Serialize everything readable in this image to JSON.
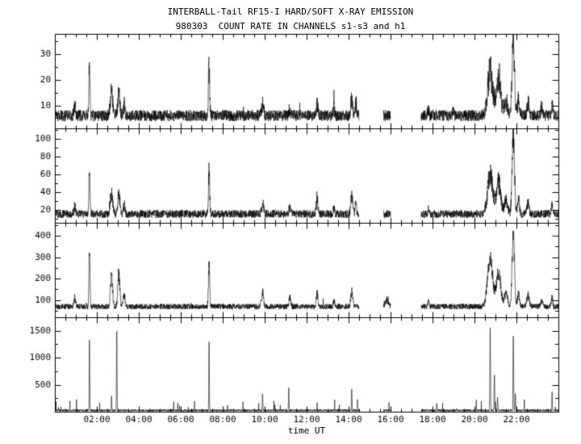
{
  "title_line1": "INTERBALL-Tail RF15-I HARD/SOFT X-RAY EMISSION",
  "title_line2": "980303  COUNT RATE IN CHANNELS s1-s3 and h1",
  "xlabel": "time UT",
  "chart_data": {
    "type": "line",
    "title": "INTERBALL-Tail RF15-I HARD/SOFT X-RAY EMISSION",
    "subtitle": "980303  COUNT RATE IN CHANNELS s1-s3 and h1",
    "xlabel": "time UT",
    "x_range_hours": [
      0,
      24
    ],
    "x_tick_values": [
      2,
      4,
      6,
      8,
      10,
      12,
      14,
      16,
      18,
      20,
      22
    ],
    "x_tick_labels": [
      "02:00",
      "04:00",
      "06:00",
      "08:00",
      "10:00",
      "12:00",
      "14:00",
      "16:00",
      "18:00",
      "20:00",
      "22:00"
    ],
    "x_minor_step_hours": 0.5,
    "sample_step_hours": 0.008,
    "seed": 12345,
    "line_color": "#000000",
    "data_gaps_hours": [
      [
        14.5,
        15.66
      ],
      [
        16.0,
        17.45
      ]
    ],
    "panels": [
      {
        "name": "channel-s1",
        "ylim": [
          1,
          38
        ],
        "yticks": [
          10,
          20,
          30
        ],
        "yminor": 5,
        "baseline": 6,
        "noise": 2.2,
        "spike_prob": 0.003,
        "spike_amp": 5,
        "events": [
          [
            0.95,
            4,
            0.04
          ],
          [
            1.65,
            23,
            0.025
          ],
          [
            2.7,
            9,
            0.06
          ],
          [
            3.05,
            8,
            0.05
          ],
          [
            3.3,
            4,
            0.04
          ],
          [
            7.35,
            19,
            0.03
          ],
          [
            9.9,
            4,
            0.05
          ],
          [
            11.2,
            3,
            0.04
          ],
          [
            12.5,
            4,
            0.04
          ],
          [
            13.3,
            3,
            0.03
          ],
          [
            14.15,
            6,
            0.05
          ],
          [
            14.35,
            5,
            0.03
          ],
          [
            17.8,
            3,
            0.03
          ],
          [
            19.0,
            2.5,
            0.03
          ],
          [
            20.75,
            17,
            0.12
          ],
          [
            21.15,
            14,
            0.1
          ],
          [
            21.5,
            6,
            0.08
          ],
          [
            21.85,
            30,
            0.055
          ],
          [
            22.1,
            6,
            0.05
          ],
          [
            22.55,
            5,
            0.05
          ],
          [
            23.2,
            3,
            0.04
          ],
          [
            23.7,
            5,
            0.03
          ]
        ]
      },
      {
        "name": "channel-s2",
        "ylim": [
          5,
          112
        ],
        "yticks": [
          20,
          40,
          60,
          80,
          100
        ],
        "yminor": 10,
        "baseline": 15,
        "noise": 4.5,
        "spike_prob": 0.003,
        "spike_amp": 10,
        "events": [
          [
            0.95,
            8,
            0.04
          ],
          [
            1.65,
            58,
            0.025
          ],
          [
            2.7,
            25,
            0.06
          ],
          [
            3.05,
            22,
            0.05
          ],
          [
            3.3,
            10,
            0.04
          ],
          [
            7.35,
            48,
            0.03
          ],
          [
            9.9,
            12,
            0.05
          ],
          [
            11.2,
            8,
            0.04
          ],
          [
            12.5,
            18,
            0.04
          ],
          [
            13.3,
            8,
            0.03
          ],
          [
            14.15,
            20,
            0.05
          ],
          [
            14.35,
            15,
            0.03
          ],
          [
            17.8,
            6,
            0.03
          ],
          [
            20.75,
            45,
            0.12
          ],
          [
            21.15,
            35,
            0.1
          ],
          [
            21.5,
            15,
            0.08
          ],
          [
            21.85,
            88,
            0.055
          ],
          [
            22.1,
            15,
            0.05
          ],
          [
            22.55,
            12,
            0.05
          ],
          [
            23.7,
            12,
            0.03
          ]
        ]
      },
      {
        "name": "channel-s3",
        "ylim": [
          20,
          460
        ],
        "yticks": [
          100,
          200,
          300,
          400
        ],
        "yminor": 50,
        "baseline": 70,
        "noise": 13,
        "spike_prob": 0.003,
        "spike_amp": 35,
        "events": [
          [
            0.95,
            40,
            0.04
          ],
          [
            1.65,
            265,
            0.025
          ],
          [
            2.7,
            150,
            0.05
          ],
          [
            3.05,
            160,
            0.045
          ],
          [
            3.3,
            60,
            0.04
          ],
          [
            7.35,
            195,
            0.03
          ],
          [
            9.9,
            70,
            0.05
          ],
          [
            11.2,
            40,
            0.04
          ],
          [
            12.5,
            60,
            0.04
          ],
          [
            13.3,
            35,
            0.03
          ],
          [
            14.15,
            70,
            0.05
          ],
          [
            15.8,
            25,
            0.08
          ],
          [
            17.8,
            25,
            0.03
          ],
          [
            20.75,
            230,
            0.12
          ],
          [
            21.15,
            160,
            0.1
          ],
          [
            21.5,
            60,
            0.08
          ],
          [
            21.85,
            340,
            0.055
          ],
          [
            22.1,
            60,
            0.05
          ],
          [
            22.55,
            50,
            0.06
          ],
          [
            23.2,
            30,
            0.04
          ],
          [
            23.7,
            40,
            0.03
          ]
        ]
      },
      {
        "name": "channel-h1",
        "ylim": [
          0,
          1750
        ],
        "yticks": [
          500,
          1000,
          1500
        ],
        "yminor": 250,
        "baseline": 25,
        "noise": 18,
        "spike_prob": 0.015,
        "spike_amp": 200,
        "events": [
          [
            1.65,
            1280,
            0.012
          ],
          [
            2.7,
            250,
            0.012
          ],
          [
            2.95,
            1520,
            0.012
          ],
          [
            7.35,
            1320,
            0.012
          ],
          [
            9.9,
            280,
            0.012
          ],
          [
            11.15,
            400,
            0.012
          ],
          [
            12.5,
            130,
            0.01
          ],
          [
            14.15,
            380,
            0.012
          ],
          [
            18.2,
            120,
            0.01
          ],
          [
            20.75,
            1580,
            0.015
          ],
          [
            20.95,
            650,
            0.015
          ],
          [
            21.1,
            250,
            0.012
          ],
          [
            21.85,
            1400,
            0.015
          ],
          [
            21.95,
            300,
            0.012
          ],
          [
            23.7,
            330,
            0.012
          ]
        ]
      }
    ]
  }
}
